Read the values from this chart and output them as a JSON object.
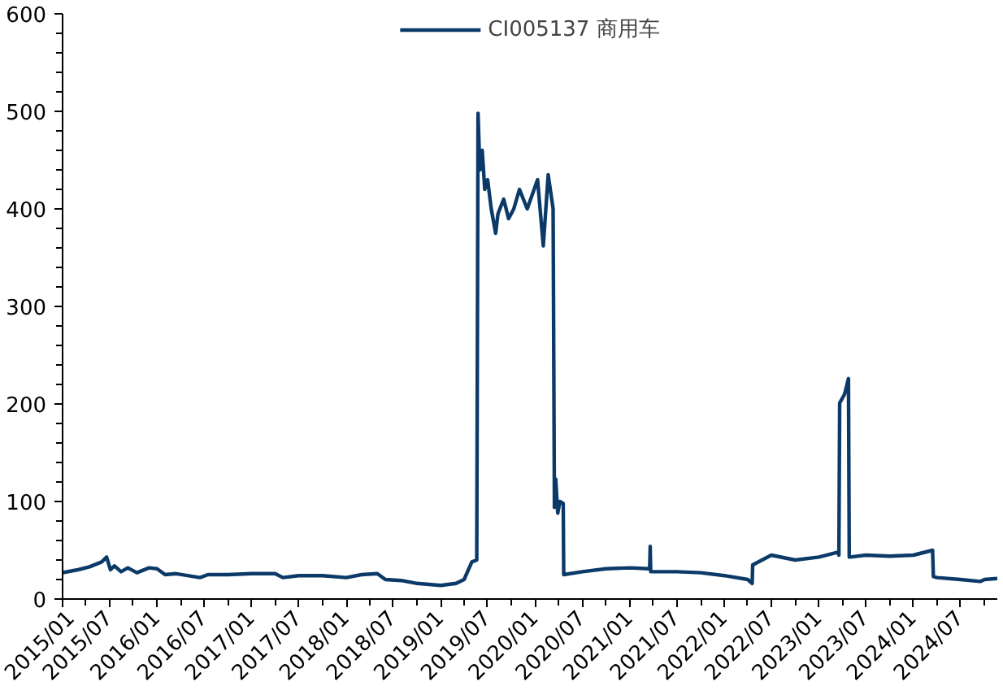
{
  "chart_data": {
    "type": "line",
    "legend": "top",
    "grid": false,
    "marker": "none",
    "line_style": "solid",
    "ylim": [
      0,
      600
    ],
    "yticks": [
      0,
      {
        "value": 20,
        "label": null
      },
      {
        "value": 40,
        "label": null
      },
      {
        "value": 60,
        "label": null
      },
      {
        "value": 80,
        "label": null
      },
      100,
      {
        "value": 120,
        "label": null
      },
      {
        "value": 140,
        "label": null
      },
      {
        "value": 160,
        "label": null
      },
      {
        "value": 180,
        "label": null
      },
      200,
      {
        "value": 220,
        "label": null
      },
      {
        "value": 240,
        "label": null
      },
      {
        "value": 260,
        "label": null
      },
      {
        "value": 280,
        "label": null
      },
      300,
      {
        "value": 320,
        "label": null
      },
      {
        "value": 340,
        "label": null
      },
      {
        "value": 360,
        "label": null
      },
      {
        "value": 380,
        "label": null
      },
      400,
      {
        "value": 420,
        "label": null
      },
      {
        "value": 440,
        "label": null
      },
      {
        "value": 460,
        "label": null
      },
      {
        "value": 480,
        "label": null
      },
      500,
      {
        "value": 520,
        "label": null
      },
      {
        "value": 540,
        "label": null
      },
      {
        "value": 560,
        "label": null
      },
      {
        "value": 580,
        "label": null
      },
      600
    ],
    "xlim": [
      "2015-01-01",
      "2024-11-20"
    ],
    "xticks": [
      {
        "value": "2015-01",
        "label": "2015/01"
      },
      {
        "value": "2015-04",
        "label": null
      },
      {
        "value": "2015-07",
        "label": "2015/07"
      },
      {
        "value": "2015-10",
        "label": null
      },
      {
        "value": "2016-01",
        "label": "2016/01"
      },
      {
        "value": "2016-04",
        "label": null
      },
      {
        "value": "2016-07",
        "label": "2016/07"
      },
      {
        "value": "2016-10",
        "label": null
      },
      {
        "value": "2017-01",
        "label": "2017/01"
      },
      {
        "value": "2017-04",
        "label": null
      },
      {
        "value": "2017-07",
        "label": "2017/07"
      },
      {
        "value": "2017-10",
        "label": null
      },
      {
        "value": "2018-01",
        "label": "2018/01"
      },
      {
        "value": "2018-04",
        "label": null
      },
      {
        "value": "2018-07",
        "label": "2018/07"
      },
      {
        "value": "2018-10",
        "label": null
      },
      {
        "value": "2019-01",
        "label": "2019/01"
      },
      {
        "value": "2019-04",
        "label": null
      },
      {
        "value": "2019-07",
        "label": "2019/07"
      },
      {
        "value": "2019-10",
        "label": null
      },
      {
        "value": "2020-01",
        "label": "2020/01"
      },
      {
        "value": "2020-04",
        "label": null
      },
      {
        "value": "2020-07",
        "label": "2020/07"
      },
      {
        "value": "2020-10",
        "label": null
      },
      {
        "value": "2021-01",
        "label": "2021/01"
      },
      {
        "value": "2021-04",
        "label": null
      },
      {
        "value": "2021-07",
        "label": "2021/07"
      },
      {
        "value": "2021-10",
        "label": null
      },
      {
        "value": "2022-01",
        "label": "2022/01"
      },
      {
        "value": "2022-04",
        "label": null
      },
      {
        "value": "2022-07",
        "label": "2022/07"
      },
      {
        "value": "2022-10",
        "label": null
      },
      {
        "value": "2023-01",
        "label": "2023/01"
      },
      {
        "value": "2023-04",
        "label": null
      },
      {
        "value": "2023-07",
        "label": "2023/07"
      },
      {
        "value": "2023-10",
        "label": null
      },
      {
        "value": "2024-01",
        "label": "2024/01"
      },
      {
        "value": "2024-04",
        "label": null
      },
      {
        "value": "2024-07",
        "label": "2024/07"
      },
      {
        "value": "2024-10",
        "label": null
      }
    ],
    "series": [
      {
        "name": "CI005137 商用车",
        "color": "#0b3a68",
        "x": [
          "2015-01-01",
          "2015-03-01",
          "2015-04-15",
          "2015-06-01",
          "2015-06-20",
          "2015-07-05",
          "2015-07-20",
          "2015-08-15",
          "2015-09-10",
          "2015-10-15",
          "2015-12-01",
          "2016-01-01",
          "2016-02-01",
          "2016-03-15",
          "2016-06-15",
          "2016-07-15",
          "2016-10-01",
          "2017-01-01",
          "2017-04-01",
          "2017-05-01",
          "2017-07-01",
          "2017-10-01",
          "2018-01-01",
          "2018-03-01",
          "2018-05-01",
          "2018-06-01",
          "2018-08-01",
          "2018-10-01",
          "2019-01-01",
          "2019-03-01",
          "2019-04-01",
          "2019-05-01",
          "2019-05-20",
          "2019-05-25",
          "2019-06-01",
          "2019-06-10",
          "2019-06-20",
          "2019-07-01",
          "2019-07-15",
          "2019-08-01",
          "2019-08-10",
          "2019-09-01",
          "2019-09-20",
          "2019-10-10",
          "2019-11-01",
          "2019-12-01",
          "2020-01-10",
          "2020-02-01",
          "2020-02-20",
          "2020-03-10",
          "2020-03-15",
          "2020-03-20",
          "2020-03-28",
          "2020-04-05",
          "2020-04-18",
          "2020-04-20",
          "2020-07-01",
          "2020-10-01",
          "2021-01-01",
          "2021-03-18",
          "2021-03-20",
          "2021-03-22",
          "2021-07-01",
          "2021-10-01",
          "2022-01-01",
          "2022-04-01",
          "2022-04-18",
          "2022-04-20",
          "2022-07-01",
          "2022-10-01",
          "2023-01-01",
          "2023-03-15",
          "2023-03-19",
          "2023-03-22",
          "2023-04-10",
          "2023-04-25",
          "2023-04-28",
          "2023-05-01",
          "2023-07-01",
          "2023-10-01",
          "2024-01-01",
          "2024-03-15",
          "2024-03-18",
          "2024-04-01",
          "2024-07-01",
          "2024-09-15",
          "2024-10-01",
          "2024-11-20"
        ],
        "values": [
          27,
          30,
          33,
          38,
          43,
          30,
          34,
          28,
          32,
          27,
          32,
          31,
          25,
          26,
          22,
          25,
          25,
          26,
          26,
          22,
          24,
          24,
          22,
          25,
          26,
          20,
          19,
          16,
          14,
          16,
          20,
          38,
          40,
          498,
          440,
          460,
          420,
          430,
          400,
          375,
          395,
          410,
          390,
          400,
          420,
          400,
          430,
          362,
          435,
          400,
          94,
          123,
          88,
          100,
          98,
          25,
          28,
          31,
          32,
          31,
          54,
          28,
          28,
          27,
          24,
          20,
          16,
          35,
          45,
          40,
          43,
          48,
          45,
          201,
          210,
          226,
          43,
          43,
          45,
          44,
          45,
          50,
          23,
          22,
          20,
          18,
          20,
          21
        ]
      }
    ]
  }
}
